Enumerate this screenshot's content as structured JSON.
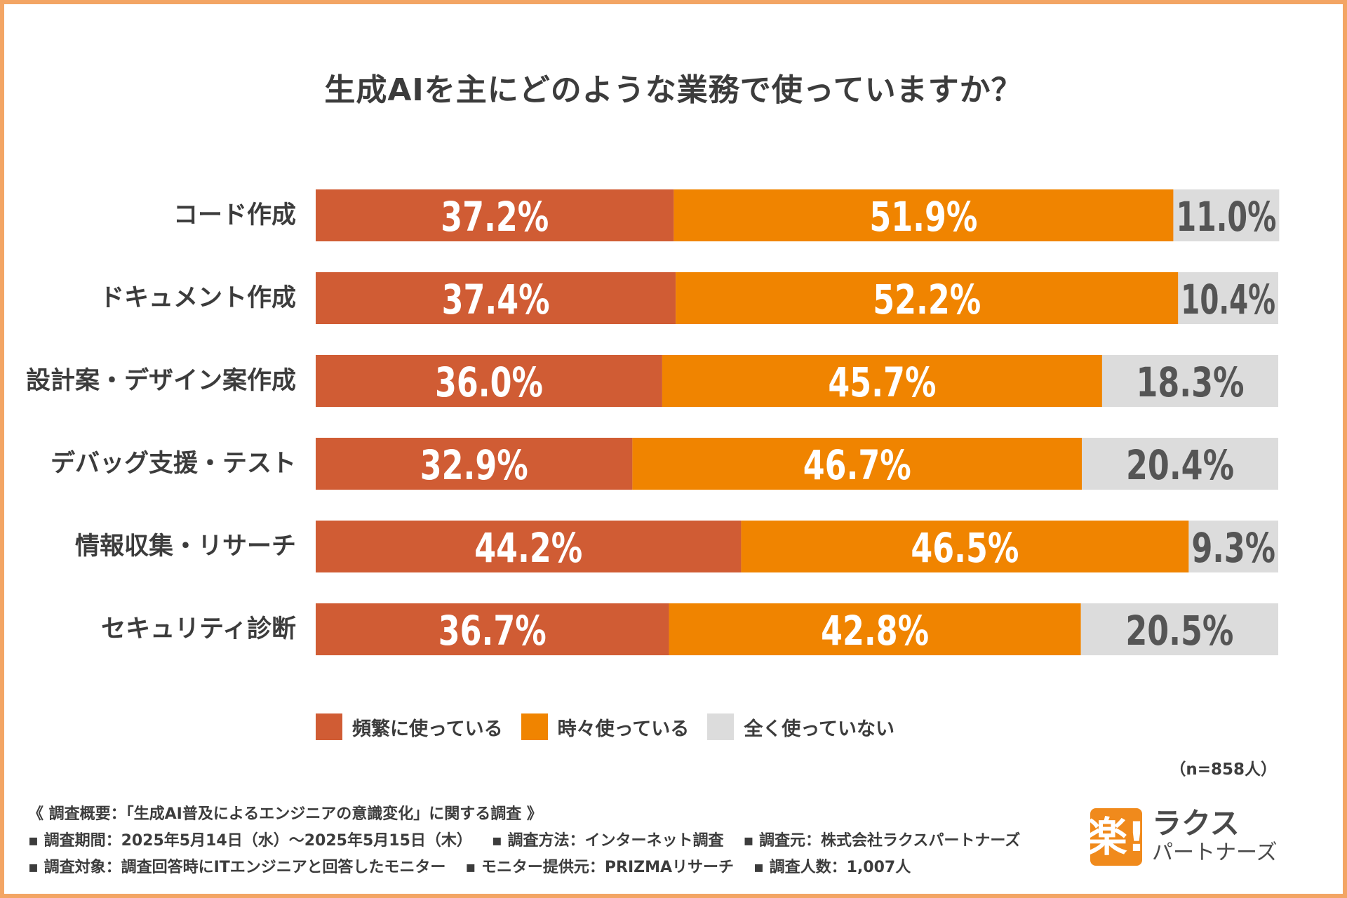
{
  "chart_data": {
    "type": "bar",
    "orientation": "horizontal",
    "stacked": true,
    "title": "生成AIを主にどのような業務で使っていますか？",
    "categories": [
      "コード作成",
      "ドキュメント作成",
      "設計案・デザイン案作成",
      "デバッグ支援・テスト",
      "情報収集・リサーチ",
      "セキュリティ診断"
    ],
    "series": [
      {
        "name": "頻繁に使っている",
        "color": "#d05c34",
        "text_color": "#ffffff",
        "values": [
          37.2,
          37.4,
          36.0,
          32.9,
          44.2,
          36.7
        ],
        "labels": [
          "37.2%",
          "37.4%",
          "36.0%",
          "32.9%",
          "44.2%",
          "36.7%"
        ]
      },
      {
        "name": "時々使っている",
        "color": "#f08400",
        "text_color": "#ffffff",
        "values": [
          51.9,
          52.2,
          45.7,
          46.7,
          46.5,
          42.8
        ],
        "labels": [
          "51.9%",
          "52.2%",
          "45.7%",
          "46.7%",
          "46.5%",
          "42.8%"
        ]
      },
      {
        "name": "全く使っていない",
        "color": "#dcdcdc",
        "text_color": "#555555",
        "values": [
          11.0,
          10.4,
          18.3,
          20.4,
          9.3,
          20.5
        ],
        "labels": [
          "11.0%",
          "10.4%",
          "18.3%",
          "20.4%",
          "9.3%",
          "20.5%"
        ]
      }
    ],
    "xlim": [
      0,
      100
    ],
    "legend_position": "bottom",
    "sample_size": "（n=858人）"
  },
  "notes": {
    "overview": "《 調査概要：「生成AI普及によるエンジニアの意識変化」に関する調査 》",
    "row1": [
      "▪ 調査期間：2025年5月14日（水）～2025年5月15日（木）",
      "▪ 調査方法：インターネット調査",
      "▪ 調査元：株式会社ラクスパートナーズ"
    ],
    "row2": [
      "▪ 調査対象：調査回答時にITエンジニアと回答したモニター",
      "▪ モニター提供元：PRIZMAリサーチ",
      "▪ 調査人数：1,007人"
    ]
  },
  "logo": {
    "mark": "楽!",
    "line1": "ラクス",
    "line2": "パートナーズ"
  }
}
